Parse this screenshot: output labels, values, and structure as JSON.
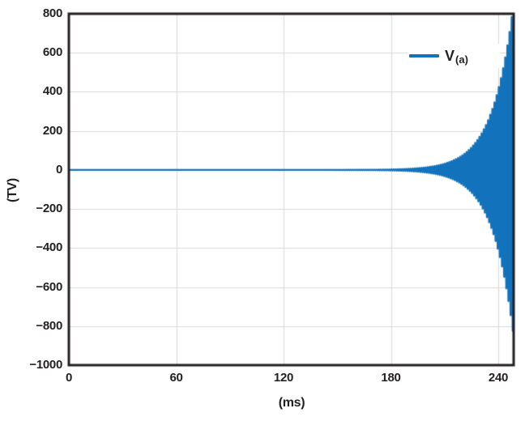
{
  "page": {
    "background": "#ffffff"
  },
  "chart_data": {
    "type": "line",
    "title": "",
    "xlabel": "(ms)",
    "ylabel": "(TV)",
    "xlim": [
      0,
      248.6
    ],
    "ylim": [
      -1000,
      800
    ],
    "xticks": [
      0,
      60,
      120,
      180,
      240
    ],
    "xtick_labels": [
      "0",
      "60",
      "120",
      "180",
      "240"
    ],
    "yticks": [
      800,
      600,
      400,
      200,
      0,
      -200,
      -400,
      -600,
      -800,
      -1000
    ],
    "ytick_labels": [
      "800",
      "600",
      "400",
      "200",
      "0",
      "−200",
      "−400",
      "−600",
      "−800",
      "−1000"
    ],
    "grid": true,
    "legend": {
      "position": "top-right",
      "label_main": "V",
      "label_sub": "(a)"
    },
    "colors": {
      "line": "#1273bc",
      "grid": "#d9d9d9",
      "frame": "#231f20",
      "text": "#231f20"
    },
    "series": [
      {
        "name": "V(a)",
        "color": "#1273bc",
        "description": "High-frequency oscillation, amplitude ~0 TV until ~190 ms, then exponentially growing envelope reaching ~±800 TV at the right edge (~248 ms)",
        "model": {
          "form": "V(t) = A * exp(k * (t - t_end)) * sin(2*PI*t / T)",
          "A_TV": 860,
          "k_per_ms": 0.085,
          "t_end_ms": 248.6,
          "T_ms": 1.2
        },
        "envelope_points_t_ms_amplitude_TV": [
          [
            0,
            0
          ],
          [
            60,
            0
          ],
          [
            120,
            0
          ],
          [
            180,
            2.5
          ],
          [
            200,
            14
          ],
          [
            210,
            32
          ],
          [
            220,
            76
          ],
          [
            230,
            177
          ],
          [
            240,
            414
          ],
          [
            248.6,
            860
          ]
        ]
      }
    ]
  }
}
